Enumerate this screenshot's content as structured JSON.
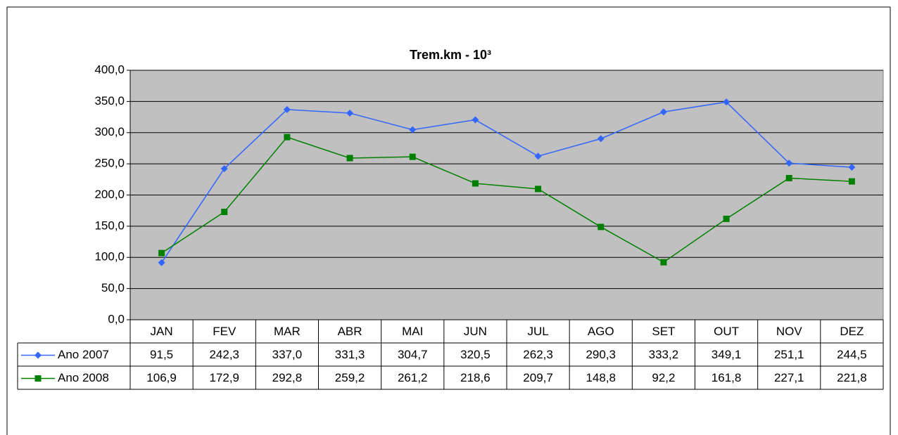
{
  "chart_data": {
    "type": "line",
    "title": "Trem.km - 10³",
    "categories": [
      "JAN",
      "FEV",
      "MAR",
      "ABR",
      "MAI",
      "JUN",
      "JUL",
      "AGO",
      "SET",
      "OUT",
      "NOV",
      "DEZ"
    ],
    "series": [
      {
        "name": "Ano 2007",
        "color": "#3366ff",
        "marker": "diamond",
        "values": [
          91.5,
          242.3,
          337.0,
          331.3,
          304.7,
          320.5,
          262.3,
          290.3,
          333.2,
          349.1,
          251.1,
          244.5
        ],
        "value_labels": [
          "91,5",
          "242,3",
          "337,0",
          "331,3",
          "304,7",
          "320,5",
          "262,3",
          "290,3",
          "333,2",
          "349,1",
          "251,1",
          "244,5"
        ]
      },
      {
        "name": "Ano 2008",
        "color": "#008000",
        "marker": "square",
        "values": [
          106.9,
          172.9,
          292.8,
          259.2,
          261.2,
          218.6,
          209.7,
          148.8,
          92.2,
          161.8,
          227.1,
          221.8
        ],
        "value_labels": [
          "106,9",
          "172,9",
          "292,8",
          "259,2",
          "261,2",
          "218,6",
          "209,7",
          "148,8",
          "92,2",
          "161,8",
          "227,1",
          "221,8"
        ]
      }
    ],
    "ylim": [
      0,
      400
    ],
    "yticks": [
      {
        "value": 0,
        "label": "0,0"
      },
      {
        "value": 50,
        "label": "50,0"
      },
      {
        "value": 100,
        "label": "100,0"
      },
      {
        "value": 150,
        "label": "150,0"
      },
      {
        "value": 200,
        "label": "200,0"
      },
      {
        "value": 250,
        "label": "250,0"
      },
      {
        "value": 300,
        "label": "300,0"
      },
      {
        "value": 350,
        "label": "350,0"
      },
      {
        "value": 400,
        "label": "400,0"
      }
    ],
    "grid": true,
    "plot_background": "#c0c0c0",
    "data_table": true
  }
}
